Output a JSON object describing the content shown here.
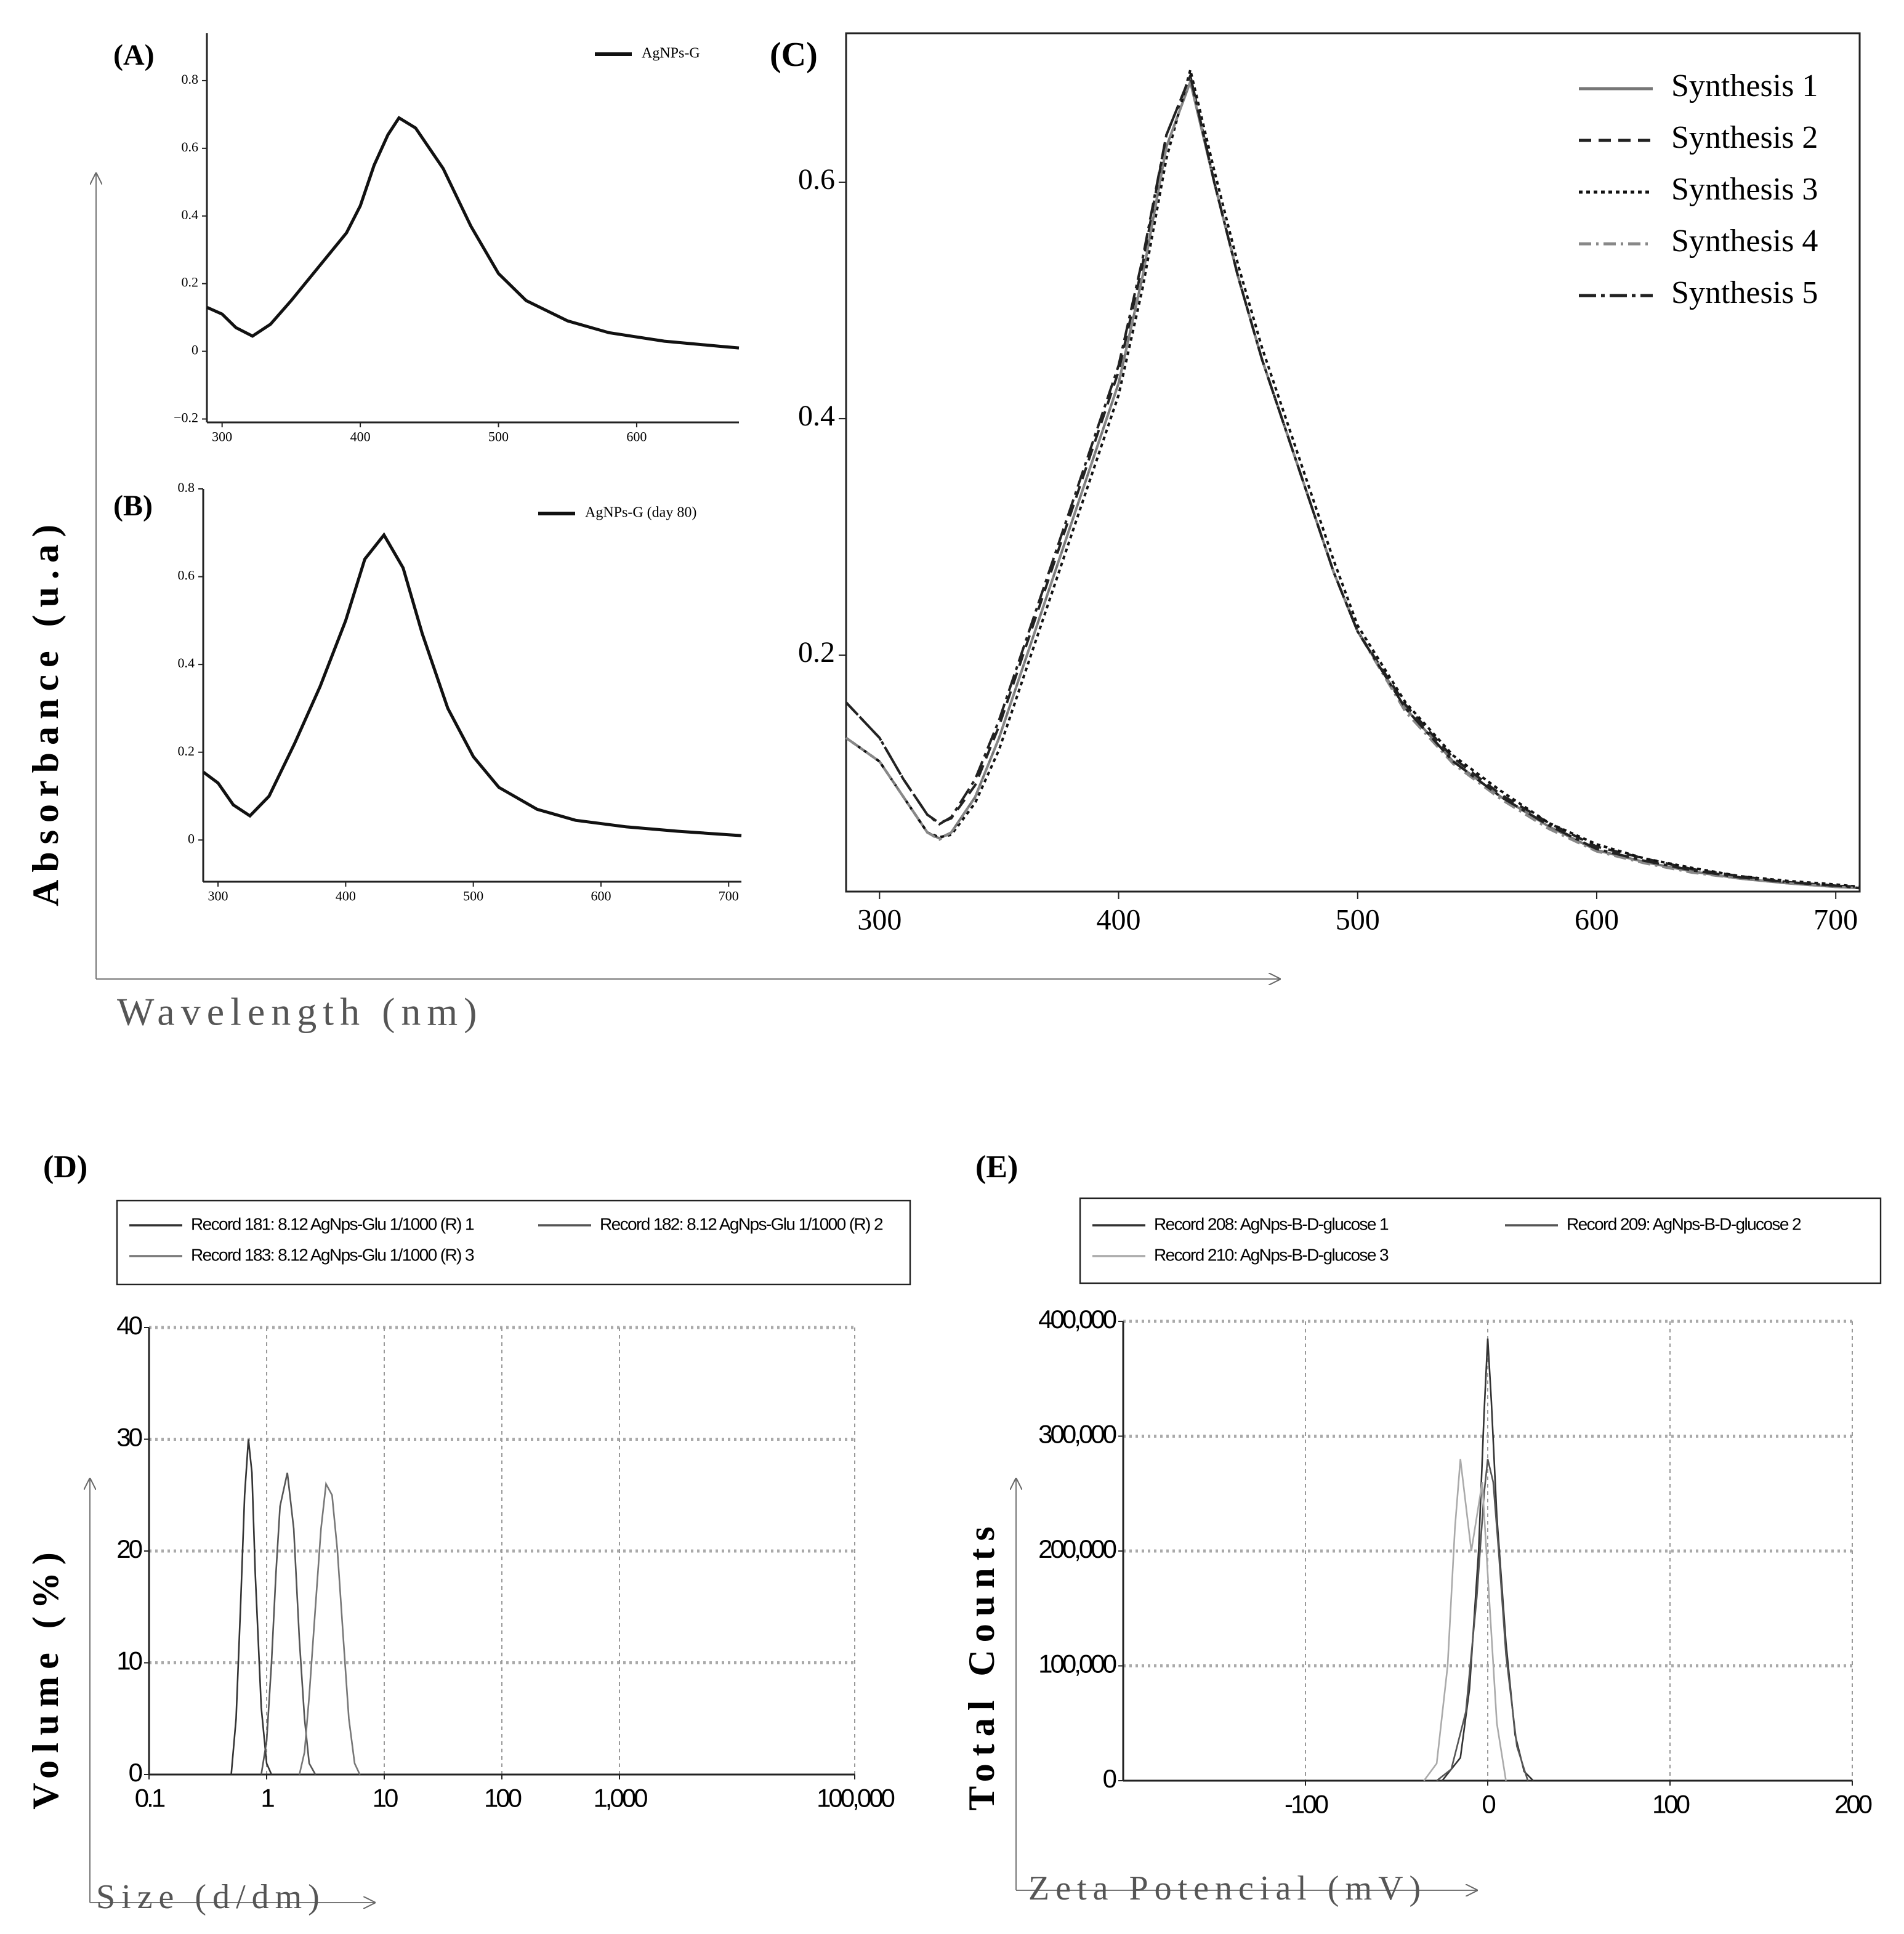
{
  "shared_axes": {
    "y_label": "Absorbance (u.a)",
    "x_label": "Wavelength (nm)"
  },
  "chart_data": [
    {
      "type": "line",
      "panel_label": "(A)",
      "xlim": [
        289,
        674
      ],
      "ylim": [
        -0.21,
        0.94
      ],
      "xticks": [
        300,
        400,
        500,
        600
      ],
      "yticks": [
        {
          "value": -0.2,
          "label": "−0.2"
        },
        0,
        0.2,
        0.4,
        0.6,
        0.8
      ],
      "series": [
        {
          "name": "AgNPs-G",
          "color": "#111111",
          "dash": "solid",
          "x": [
            289,
            300,
            310,
            322,
            335,
            350,
            370,
            390,
            400,
            410,
            420,
            428,
            440,
            460,
            480,
            500,
            520,
            550,
            580,
            620,
            660,
            674
          ],
          "values": [
            0.13,
            0.11,
            0.07,
            0.045,
            0.08,
            0.15,
            0.25,
            0.35,
            0.43,
            0.55,
            0.64,
            0.69,
            0.66,
            0.54,
            0.37,
            0.23,
            0.15,
            0.09,
            0.055,
            0.03,
            0.015,
            0.01
          ]
        }
      ]
    },
    {
      "type": "line",
      "panel_label": "(B)",
      "xlim": [
        288.4,
        710
      ],
      "ylim": [
        -0.095,
        0.8
      ],
      "xticks": [
        300,
        400,
        500,
        600,
        700
      ],
      "yticks": [
        0,
        0.2,
        0.4,
        0.6,
        0.8
      ],
      "series": [
        {
          "name": "AgNPs-G (day 80)",
          "color": "#111111",
          "dash": "solid",
          "x": [
            288.4,
            300,
            312,
            325,
            340,
            360,
            380,
            400,
            415,
            430,
            445,
            460,
            480,
            500,
            520,
            550,
            580,
            620,
            660,
            700,
            710
          ],
          "values": [
            0.155,
            0.13,
            0.08,
            0.055,
            0.1,
            0.22,
            0.35,
            0.5,
            0.64,
            0.695,
            0.62,
            0.47,
            0.3,
            0.19,
            0.12,
            0.07,
            0.045,
            0.03,
            0.02,
            0.012,
            0.01
          ]
        }
      ]
    },
    {
      "type": "line",
      "panel_label": "(C)",
      "xlim": [
        286,
        710
      ],
      "ylim": [
        0,
        0.726
      ],
      "xticks": [
        300,
        400,
        500,
        600,
        700
      ],
      "yticks": [
        0.2,
        0.4,
        0.6
      ],
      "x": [
        286,
        300,
        310,
        320,
        325,
        330,
        340,
        350,
        360,
        370,
        380,
        390,
        400,
        410,
        420,
        430,
        440,
        450,
        460,
        470,
        480,
        490,
        500,
        520,
        540,
        560,
        580,
        600,
        620,
        640,
        660,
        680,
        700,
        710
      ],
      "series": [
        {
          "name": "Synthesis 1",
          "color": "#777777",
          "dash": "solid",
          "values": [
            0.13,
            0.11,
            0.08,
            0.05,
            0.045,
            0.05,
            0.08,
            0.13,
            0.19,
            0.25,
            0.31,
            0.37,
            0.43,
            0.52,
            0.63,
            0.685,
            0.6,
            0.52,
            0.45,
            0.39,
            0.33,
            0.27,
            0.22,
            0.155,
            0.11,
            0.08,
            0.055,
            0.035,
            0.025,
            0.017,
            0.011,
            0.007,
            0.004,
            0.003
          ]
        },
        {
          "name": "Synthesis 2",
          "color": "#222222",
          "dash": "dashed",
          "values": [
            0.16,
            0.13,
            0.095,
            0.065,
            0.058,
            0.062,
            0.09,
            0.14,
            0.2,
            0.26,
            0.32,
            0.38,
            0.44,
            0.53,
            0.64,
            0.69,
            0.6,
            0.52,
            0.45,
            0.39,
            0.33,
            0.27,
            0.22,
            0.158,
            0.113,
            0.082,
            0.058,
            0.038,
            0.028,
            0.019,
            0.013,
            0.008,
            0.005,
            0.004
          ]
        },
        {
          "name": "Synthesis 3",
          "color": "#111111",
          "dash": "dotted",
          "values": [
            0.13,
            0.11,
            0.08,
            0.05,
            0.046,
            0.048,
            0.075,
            0.12,
            0.18,
            0.24,
            0.3,
            0.36,
            0.42,
            0.51,
            0.62,
            0.695,
            0.61,
            0.53,
            0.46,
            0.4,
            0.34,
            0.28,
            0.225,
            0.16,
            0.115,
            0.085,
            0.058,
            0.04,
            0.028,
            0.02,
            0.013,
            0.009,
            0.006,
            0.004
          ]
        },
        {
          "name": "Synthesis 4",
          "color": "#888888",
          "dash": "dashdot",
          "values": [
            0.13,
            0.11,
            0.08,
            0.05,
            0.044,
            0.05,
            0.08,
            0.13,
            0.19,
            0.25,
            0.31,
            0.37,
            0.43,
            0.52,
            0.63,
            0.685,
            0.6,
            0.52,
            0.45,
            0.39,
            0.33,
            0.27,
            0.22,
            0.152,
            0.108,
            0.078,
            0.053,
            0.034,
            0.024,
            0.016,
            0.011,
            0.007,
            0.004,
            0.003
          ]
        },
        {
          "name": "Synthesis 5",
          "color": "#222222",
          "dash": "longdashdot",
          "values": [
            0.16,
            0.13,
            0.095,
            0.065,
            0.057,
            0.063,
            0.095,
            0.145,
            0.205,
            0.265,
            0.325,
            0.385,
            0.445,
            0.535,
            0.64,
            0.69,
            0.6,
            0.52,
            0.45,
            0.39,
            0.33,
            0.27,
            0.22,
            0.155,
            0.11,
            0.08,
            0.056,
            0.036,
            0.026,
            0.018,
            0.012,
            0.008,
            0.005,
            0.003
          ]
        }
      ]
    },
    {
      "type": "line",
      "panel_label": "(D)",
      "y_label": "Volume (%)",
      "x_label": "Size (d/dm)",
      "xlog": true,
      "grid": true,
      "xlim": [
        0.1,
        100000
      ],
      "ylim": [
        0,
        40
      ],
      "xticks": [
        0.1,
        1,
        10,
        100,
        {
          "value": 1000,
          "label": "1,000"
        },
        {
          "value": 100000,
          "label": "100,000"
        }
      ],
      "yticks": [
        0,
        10,
        20,
        30,
        40
      ],
      "series": [
        {
          "name": "Record 181: 8.12 AgNps-Glu 1/1000 (R)  1",
          "color": "#333333",
          "dash": "solid",
          "x": [
            0.5,
            0.55,
            0.6,
            0.65,
            0.7,
            0.75,
            0.8,
            0.9,
            1.0,
            1.1
          ],
          "values": [
            0,
            5,
            15,
            25,
            30,
            27,
            18,
            6,
            1,
            0
          ]
        },
        {
          "name": "Record 182: 8.12 AgNps-Glu 1/1000 (R)  2",
          "color": "#555555",
          "dash": "solid",
          "x": [
            0.9,
            1.0,
            1.1,
            1.2,
            1.3,
            1.5,
            1.7,
            1.9,
            2.1,
            2.3,
            2.6
          ],
          "values": [
            0,
            3,
            10,
            18,
            24,
            27,
            22,
            12,
            5,
            1,
            0
          ]
        },
        {
          "name": "Record 183: 8.12 AgNps-Glu 1/1000 (R)  3",
          "color": "#777777",
          "dash": "solid",
          "x": [
            1.9,
            2.1,
            2.3,
            2.6,
            2.9,
            3.2,
            3.6,
            4.0,
            4.5,
            5.0,
            5.6,
            6.2
          ],
          "values": [
            0,
            2,
            7,
            15,
            22,
            26,
            25,
            20,
            12,
            5,
            1,
            0
          ]
        }
      ]
    },
    {
      "type": "line",
      "panel_label": "(E)",
      "y_label": "Total Counts",
      "x_label": "Zeta Potencial (mV)",
      "grid": true,
      "xlim": [
        -200,
        200
      ],
      "ylim": [
        0,
        400000
      ],
      "xticks": [
        -100,
        0,
        100,
        200
      ],
      "yticks": [
        0,
        {
          "value": 100000,
          "label": "100,000"
        },
        {
          "value": 200000,
          "label": "200,000"
        },
        {
          "value": 300000,
          "label": "300,000"
        },
        {
          "value": 400000,
          "label": "400,000"
        }
      ],
      "series": [
        {
          "name": "Record 208: AgNps-B-D-glucose 1",
          "color": "#333333",
          "dash": "solid",
          "x": [
            -25,
            -15,
            -10,
            -5,
            -2,
            0,
            2,
            5,
            10,
            15,
            20,
            25
          ],
          "values": [
            0,
            20000,
            80000,
            200000,
            320000,
            385000,
            330000,
            230000,
            120000,
            40000,
            8000,
            0
          ]
        },
        {
          "name": "Record 209: AgNps-B-D-glucose 2",
          "color": "#555555",
          "dash": "solid",
          "x": [
            -28,
            -20,
            -12,
            -6,
            -2,
            0,
            3,
            6,
            10,
            16,
            22
          ],
          "values": [
            0,
            10000,
            60000,
            160000,
            250000,
            280000,
            260000,
            200000,
            110000,
            30000,
            0
          ]
        },
        {
          "name": "Record 210: AgNps-B-D-glucose 3",
          "color": "#aaaaaa",
          "dash": "solid",
          "x": [
            -35,
            -28,
            -22,
            -18,
            -15,
            -12,
            -9,
            -6,
            -3,
            0,
            5,
            10
          ],
          "values": [
            0,
            15000,
            100000,
            220000,
            280000,
            240000,
            200000,
            230000,
            260000,
            180000,
            50000,
            0
          ]
        }
      ]
    }
  ]
}
